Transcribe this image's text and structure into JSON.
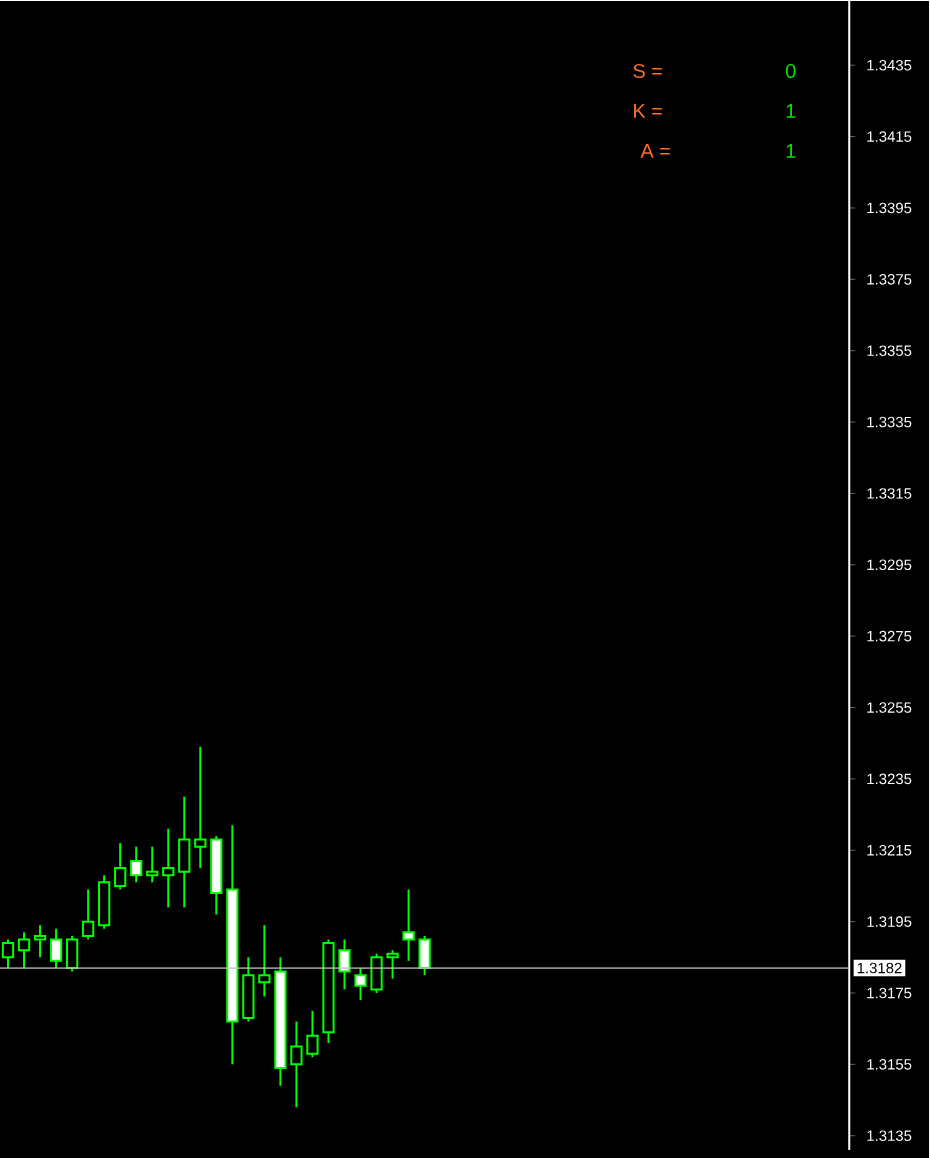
{
  "chart_data": {
    "type": "candlestick",
    "color": "#00ff00",
    "categories": [
      null,
      null,
      null,
      null,
      null,
      null,
      null,
      null,
      null,
      null,
      null,
      null,
      null,
      null,
      null,
      null,
      null,
      null,
      null,
      null,
      null,
      null,
      null,
      null,
      null,
      null,
      null,
      null,
      null,
      null,
      null,
      null,
      null,
      null,
      null,
      null,
      null,
      null,
      null,
      null,
      null,
      null,
      null,
      null,
      null,
      null,
      null,
      null,
      null,
      null,
      null,
      null,
      null
    ],
    "ohlc": [
      [
        1.3185,
        1.319,
        1.3182,
        1.3189
      ],
      [
        1.3187,
        1.3192,
        1.3182,
        1.319
      ],
      [
        1.319,
        1.3194,
        1.3185,
        1.3191
      ],
      [
        1.319,
        1.3193,
        1.3182,
        1.3184
      ],
      [
        1.3182,
        1.3191,
        1.3181,
        1.319
      ],
      [
        1.3191,
        1.3204,
        1.319,
        1.3195
      ],
      [
        1.3194,
        1.3208,
        1.3193,
        1.3206
      ],
      [
        1.3205,
        1.3217,
        1.3204,
        1.321
      ],
      [
        1.3212,
        1.3216,
        1.3206,
        1.3208
      ],
      [
        1.3208,
        1.3216,
        1.3206,
        1.3209
      ],
      [
        1.3208,
        1.3221,
        1.3199,
        1.321
      ],
      [
        1.3209,
        1.323,
        1.3199,
        1.3218
      ],
      [
        1.3216,
        1.3244,
        1.321,
        1.3218
      ],
      [
        1.3218,
        1.3219,
        1.3197,
        1.3203
      ],
      [
        1.3204,
        1.3222,
        1.3155,
        1.3167
      ],
      [
        1.3168,
        1.3185,
        1.3167,
        1.318
      ],
      [
        1.3178,
        1.3194,
        1.3174,
        1.318
      ],
      [
        1.3181,
        1.3185,
        1.3149,
        1.3154
      ],
      [
        1.3155,
        1.3167,
        1.3143,
        1.316
      ],
      [
        1.3158,
        1.317,
        1.3157,
        1.3163
      ],
      [
        1.3164,
        1.319,
        1.3161,
        1.3189
      ],
      [
        1.3187,
        1.319,
        1.3176,
        1.3181
      ],
      [
        1.318,
        1.3182,
        1.3173,
        1.3177
      ],
      [
        1.3176,
        1.3186,
        1.3175,
        1.3185
      ],
      [
        1.3185,
        1.3187,
        1.3179,
        1.3186
      ],
      [
        1.3192,
        1.3204,
        1.3184,
        1.319
      ],
      [
        1.319,
        1.3191,
        1.318,
        1.3182
      ],
      null,
      null,
      null,
      null,
      null,
      null,
      null,
      null,
      null,
      null,
      null,
      null,
      null,
      null,
      null,
      null,
      null,
      null,
      null,
      null,
      null,
      null,
      null,
      null,
      null,
      null
    ],
    "ylim": [
      1.3131,
      1.3453
    ],
    "yticks": [
      1.3135,
      1.3155,
      1.3175,
      1.3195,
      1.3215,
      1.3235,
      1.3255,
      1.3275,
      1.3295,
      1.3315,
      1.3335,
      1.3355,
      1.3375,
      1.3395,
      1.3415,
      1.3435
    ],
    "tick_labels": "y",
    "ref_lines": [
      {
        "axis": "y",
        "value": 1.3182,
        "label": "1.3182",
        "color": "#c0c0c0"
      }
    ],
    "annotations": [
      "S =",
      "0",
      "K =",
      "1",
      "A =",
      "1"
    ]
  }
}
